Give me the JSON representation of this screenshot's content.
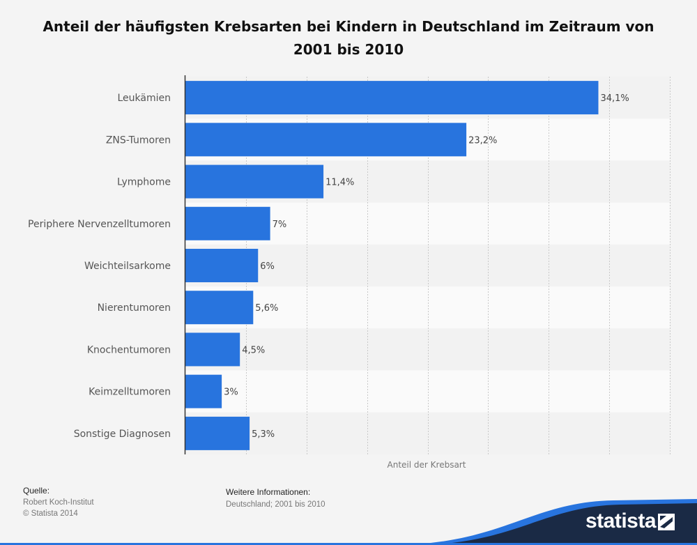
{
  "chart_data": {
    "type": "bar",
    "orientation": "horizontal",
    "title": "Anteil der häufigsten Krebsarten bei Kindern in Deutschland im Zeitraum von 2001 bis 2010",
    "categories": [
      "Leukämien",
      "ZNS-Tumoren",
      "Lymphome",
      "Periphere Nervenzelltumoren",
      "Weichteilsarkome",
      "Nierentumoren",
      "Knochentumoren",
      "Keimzelltumoren",
      "Sonstige Diagnosen"
    ],
    "values": [
      34.1,
      23.2,
      11.4,
      7,
      6,
      5.6,
      4.5,
      3,
      5.3
    ],
    "value_labels": [
      "34,1%",
      "23,2%",
      "11,4%",
      "7%",
      "6%",
      "5,6%",
      "4,5%",
      "3%",
      "5,3%"
    ],
    "xlabel": "Anteil der Krebsart",
    "ylabel": "",
    "xlim": [
      0,
      40
    ],
    "grid": true,
    "bar_color": "#2874de"
  },
  "footer": {
    "source_heading": "Quelle:",
    "source_lines": [
      "Robert Koch-Institut",
      "© Statista 2014"
    ],
    "info_heading": "Weitere Informationen:",
    "info_text": "Deutschland; 2001 bis 2010"
  },
  "brand": {
    "name": "statista",
    "icon": "statista-logo-icon",
    "color": "#1a2a45",
    "accent": "#2874de"
  }
}
